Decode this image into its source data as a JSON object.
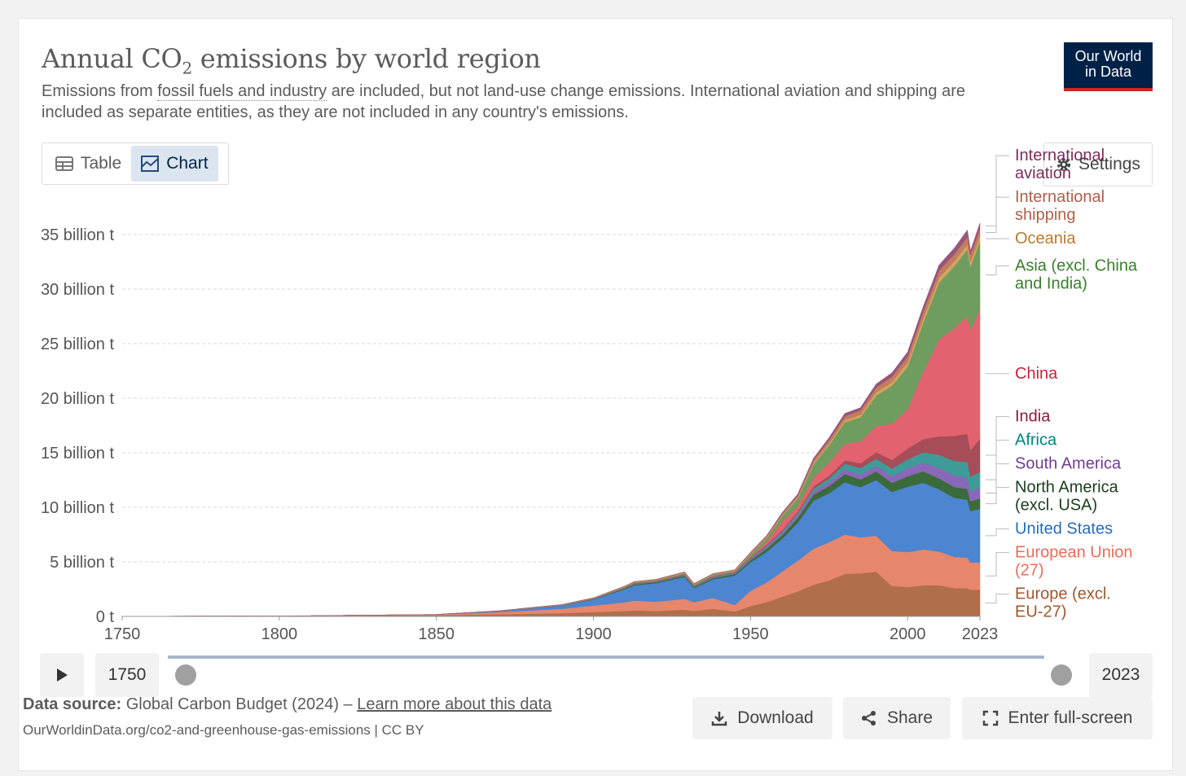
{
  "header": {
    "title_main": "Annual CO",
    "title_sub": "2",
    "title_rest": " emissions by world region",
    "subtitle_pre": "Emissions from ",
    "subtitle_link": "fossil fuels and industry",
    "subtitle_post": " are included, but not land-use change emissions. International aviation and shipping are included as separate entities, as they are not included in any country's emissions.",
    "logo_line1": "Our World",
    "logo_line2": "in Data"
  },
  "tabs": {
    "table": "Table",
    "chart": "Chart",
    "active": "Chart"
  },
  "settings_label": "Settings",
  "timeline": {
    "start": "1750",
    "end": "2023",
    "play_icon": "play-icon"
  },
  "footer": {
    "source_label": "Data source:",
    "source_text": " Global Carbon Budget (2024) – ",
    "learn_more": "Learn more about this data",
    "url": "OurWorldinData.org/co2-and-greenhouse-gas-emissions | CC BY",
    "download": "Download",
    "share": "Share",
    "fullscreen": "Enter full-screen"
  },
  "chart_data": {
    "type": "area",
    "stacked": true,
    "title": "Annual CO2 emissions by world region",
    "y_unit": "billion t",
    "ylim": [
      0,
      38
    ],
    "xlim": [
      1750,
      2023
    ],
    "y_ticks": [
      0,
      5,
      10,
      15,
      20,
      25,
      30,
      35
    ],
    "y_tick_labels": [
      "0 t",
      "5 billion t",
      "10 billion t",
      "15 billion t",
      "20 billion t",
      "25 billion t",
      "30 billion t",
      "35 billion t"
    ],
    "x_ticks": [
      1750,
      1800,
      1850,
      1900,
      1950,
      2000,
      2023
    ],
    "x_tick_labels": [
      "1750",
      "1800",
      "1850",
      "1900",
      "1950",
      "2000",
      "2023"
    ],
    "grid": "horizontal-dashed",
    "legend": "right-inline",
    "x": [
      1750,
      1800,
      1850,
      1870,
      1890,
      1900,
      1910,
      1913,
      1920,
      1929,
      1932,
      1938,
      1945,
      1950,
      1955,
      1960,
      1965,
      1970,
      1975,
      1980,
      1985,
      1990,
      1995,
      2000,
      2005,
      2010,
      2015,
      2019,
      2020,
      2023
    ],
    "series": [
      {
        "name": "Europe (excl. EU-27)",
        "color": "#b16e4b",
        "label_lines": [
          "Europe (excl.",
          "EU-27)"
        ],
        "label_color": "#a2552c",
        "values": [
          0.01,
          0.03,
          0.12,
          0.2,
          0.3,
          0.4,
          0.5,
          0.55,
          0.5,
          0.62,
          0.5,
          0.7,
          0.45,
          0.95,
          1.3,
          1.8,
          2.3,
          2.9,
          3.3,
          3.9,
          3.95,
          4.1,
          2.8,
          2.7,
          2.85,
          2.85,
          2.6,
          2.6,
          2.45,
          2.45
        ]
      },
      {
        "name": "European Union (27)",
        "color": "#e6866d",
        "label_lines": [
          "European Union",
          "(27)"
        ],
        "label_color": "#e56e5a",
        "values": [
          0.0,
          0.0,
          0.05,
          0.2,
          0.4,
          0.6,
          0.8,
          0.9,
          0.85,
          1.0,
          0.8,
          1.0,
          0.6,
          1.4,
          1.8,
          2.3,
          2.8,
          3.3,
          3.5,
          3.6,
          3.3,
          3.3,
          3.2,
          3.2,
          3.3,
          3.1,
          2.85,
          2.8,
          2.5,
          2.5
        ]
      },
      {
        "name": "United States",
        "color": "#4c85d0",
        "label_lines": [
          "United States"
        ],
        "label_color": "#286bbb",
        "values": [
          0.0,
          0.0,
          0.0,
          0.1,
          0.3,
          0.55,
          1.2,
          1.4,
          1.7,
          2.0,
          1.3,
          1.7,
          2.7,
          2.6,
          2.8,
          3.0,
          3.5,
          4.4,
          4.5,
          4.8,
          4.6,
          5.1,
          5.4,
          6.0,
          6.1,
          5.7,
          5.4,
          5.3,
          4.7,
          4.9
        ]
      },
      {
        "name": "North America (excl. USA)",
        "color": "#3c6b3b",
        "label_lines": [
          "North America",
          "(excl. USA)"
        ],
        "label_color": "#1a3d1a",
        "values": [
          0.0,
          0.0,
          0.0,
          0.0,
          0.02,
          0.04,
          0.08,
          0.1,
          0.1,
          0.12,
          0.1,
          0.12,
          0.14,
          0.2,
          0.28,
          0.33,
          0.42,
          0.55,
          0.65,
          0.75,
          0.7,
          0.8,
          0.85,
          0.95,
          1.05,
          1.0,
          1.0,
          1.0,
          0.9,
          0.95
        ]
      },
      {
        "name": "South America",
        "color": "#8a68b8",
        "label_lines": [
          "South America"
        ],
        "label_color": "#6d3e91",
        "values": [
          0.0,
          0.0,
          0.0,
          0.0,
          0.01,
          0.01,
          0.02,
          0.02,
          0.03,
          0.04,
          0.03,
          0.05,
          0.06,
          0.1,
          0.14,
          0.18,
          0.22,
          0.28,
          0.35,
          0.45,
          0.45,
          0.5,
          0.6,
          0.75,
          0.8,
          0.95,
          1.05,
          1.0,
          0.9,
          1.0
        ]
      },
      {
        "name": "Africa",
        "color": "#3f9b98",
        "label_lines": [
          "Africa"
        ],
        "label_color": "#00847e",
        "values": [
          0.0,
          0.0,
          0.0,
          0.0,
          0.0,
          0.01,
          0.02,
          0.03,
          0.03,
          0.04,
          0.04,
          0.05,
          0.06,
          0.1,
          0.12,
          0.15,
          0.2,
          0.28,
          0.35,
          0.5,
          0.6,
          0.65,
          0.7,
          0.8,
          0.95,
          1.2,
          1.35,
          1.45,
          1.35,
          1.45
        ]
      },
      {
        "name": "India",
        "color": "#a74d5a",
        "label_lines": [
          "India"
        ],
        "label_color": "#8c1c3a",
        "values": [
          0.0,
          0.0,
          0.0,
          0.0,
          0.01,
          0.02,
          0.03,
          0.04,
          0.04,
          0.05,
          0.05,
          0.06,
          0.06,
          0.07,
          0.1,
          0.12,
          0.16,
          0.2,
          0.25,
          0.3,
          0.45,
          0.6,
          0.8,
          1.0,
          1.2,
          1.7,
          2.3,
          2.6,
          2.45,
          3.05
        ]
      },
      {
        "name": "China",
        "color": "#e2636f",
        "label_lines": [
          "China"
        ],
        "label_color": "#c5243d",
        "values": [
          0.0,
          0.0,
          0.0,
          0.0,
          0.0,
          0.0,
          0.01,
          0.02,
          0.02,
          0.03,
          0.03,
          0.04,
          0.03,
          0.08,
          0.3,
          0.8,
          0.5,
          0.8,
          1.2,
          1.5,
          2.0,
          2.4,
          3.3,
          3.6,
          6.2,
          8.9,
          9.9,
          10.8,
          11.0,
          11.9
        ]
      },
      {
        "name": "Asia (excl. China and India)",
        "color": "#6f9c5f",
        "label_lines": [
          "Asia (excl. China",
          "and India)"
        ],
        "label_color": "#387e2c",
        "values": [
          0.0,
          0.0,
          0.0,
          0.0,
          0.01,
          0.02,
          0.05,
          0.06,
          0.06,
          0.08,
          0.08,
          0.1,
          0.07,
          0.2,
          0.3,
          0.5,
          0.7,
          1.2,
          1.6,
          2.0,
          2.2,
          2.8,
          3.5,
          3.9,
          4.5,
          5.2,
          5.7,
          6.1,
          5.8,
          6.2
        ]
      },
      {
        "name": "Oceania",
        "color": "#d3a45e",
        "label_lines": [
          "Oceania"
        ],
        "label_color": "#b77a2f",
        "values": [
          0.0,
          0.0,
          0.0,
          0.0,
          0.01,
          0.01,
          0.02,
          0.02,
          0.02,
          0.03,
          0.03,
          0.03,
          0.04,
          0.05,
          0.06,
          0.08,
          0.1,
          0.13,
          0.16,
          0.2,
          0.23,
          0.3,
          0.32,
          0.38,
          0.42,
          0.45,
          0.45,
          0.45,
          0.44,
          0.44
        ]
      },
      {
        "name": "International shipping",
        "color": "#c27d5e",
        "label_lines": [
          "International",
          "shipping"
        ],
        "label_color": "#b05e4a",
        "values": [
          0.0,
          0.0,
          0.01,
          0.02,
          0.03,
          0.04,
          0.05,
          0.05,
          0.05,
          0.06,
          0.05,
          0.06,
          0.06,
          0.1,
          0.12,
          0.15,
          0.2,
          0.28,
          0.32,
          0.35,
          0.4,
          0.45,
          0.5,
          0.55,
          0.6,
          0.65,
          0.65,
          0.7,
          0.65,
          0.7
        ]
      },
      {
        "name": "International aviation",
        "color": "#98557c",
        "label_lines": [
          "International",
          "aviation"
        ],
        "label_color": "#7a2e5b",
        "values": [
          0.0,
          0.0,
          0.0,
          0.0,
          0.0,
          0.0,
          0.0,
          0.0,
          0.0,
          0.0,
          0.0,
          0.0,
          0.0,
          0.02,
          0.04,
          0.07,
          0.1,
          0.15,
          0.2,
          0.25,
          0.25,
          0.3,
          0.35,
          0.4,
          0.45,
          0.5,
          0.55,
          0.6,
          0.35,
          0.5
        ]
      }
    ]
  }
}
